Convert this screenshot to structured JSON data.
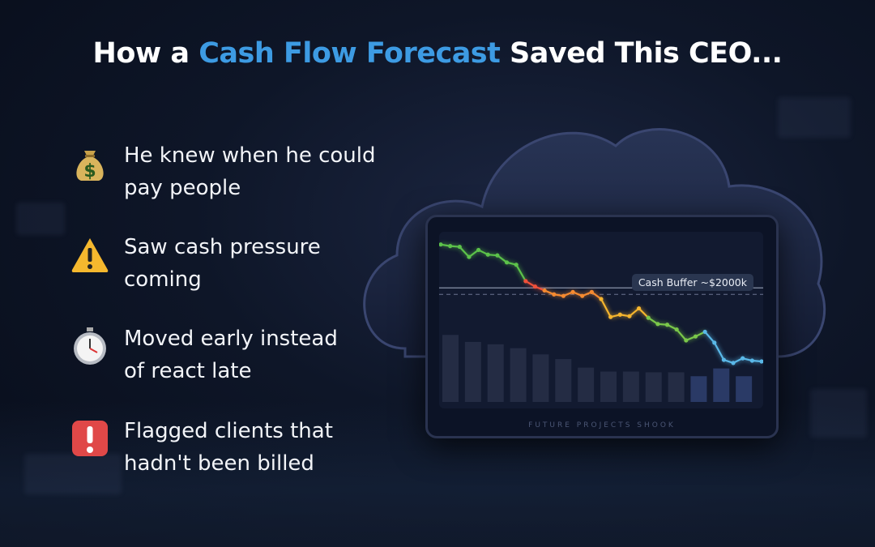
{
  "title": {
    "pre": "How a ",
    "highlight": "Cash Flow Forecast",
    "post": " Saved This CEO..."
  },
  "bullets": [
    {
      "icon": "money-bag-icon",
      "line1": "He knew when he could",
      "line2": "pay people"
    },
    {
      "icon": "warning-icon",
      "line1": "Saw cash pressure",
      "line2": "coming"
    },
    {
      "icon": "stopwatch-icon",
      "line1": "Moved early instead",
      "line2": "of react late"
    },
    {
      "icon": "exclamation-icon",
      "line1": "Flagged clients that",
      "line2": "hadn't been billed"
    }
  ],
  "monitor": {
    "buffer_label": "Cash Buffer ~$2000k",
    "footer": "FUTURE   PROJECTS   SHOOK"
  },
  "colors": {
    "accent": "#3d9be3",
    "background": "#0e1628"
  },
  "chart_data": {
    "type": "line",
    "line": [
      202,
      200,
      199,
      186,
      195,
      189,
      188,
      179,
      176,
      155,
      148,
      143,
      138,
      136,
      141,
      136,
      141,
      132,
      109,
      112,
      110,
      120,
      108,
      100,
      99,
      93,
      79,
      84,
      90,
      76,
      54,
      50,
      56,
      53,
      52
    ],
    "bars": [
      86,
      77,
      74,
      69,
      61,
      55,
      44,
      39,
      39,
      38,
      38,
      33,
      43,
      33
    ],
    "buffer_level": 138,
    "ylim": [
      0,
      210
    ]
  }
}
